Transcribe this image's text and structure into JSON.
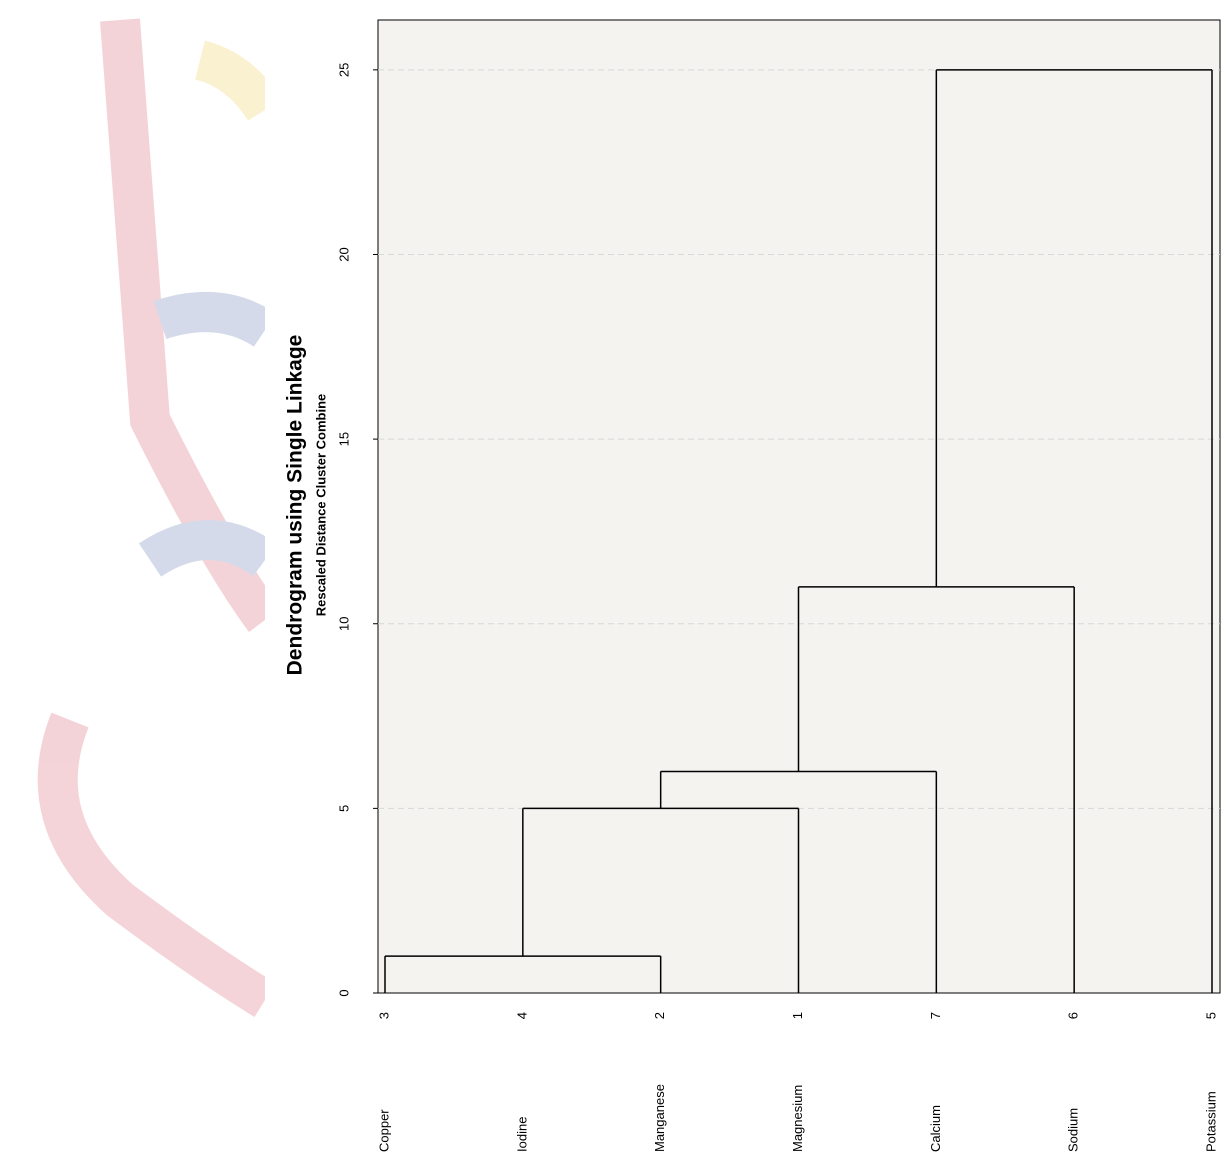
{
  "chart_data": {
    "type": "dendrogram",
    "title": "Dendrogram using Single Linkage",
    "subtitle": "Rescaled Distance Cluster Combine",
    "categories": [
      "Copper",
      "Iodine",
      "Manganese",
      "Magnesium",
      "Calcium",
      "Sodium",
      "Potassium"
    ],
    "case_labels": [
      "3",
      "4",
      "2",
      "1",
      "7",
      "6",
      "5"
    ],
    "merges": [
      {
        "height": 1,
        "left": 0,
        "right": 2
      },
      {
        "height": 5,
        "left": 1,
        "right": 3
      },
      {
        "height": 6,
        "left": 2,
        "right": 4
      },
      {
        "height": 11,
        "left": 3,
        "right": 5
      },
      {
        "height": 25,
        "left": 4,
        "right": 6
      }
    ],
    "ylim": [
      0,
      26.35
    ],
    "yticks": [
      0,
      5,
      10,
      15,
      20,
      25
    ],
    "grid": true
  }
}
